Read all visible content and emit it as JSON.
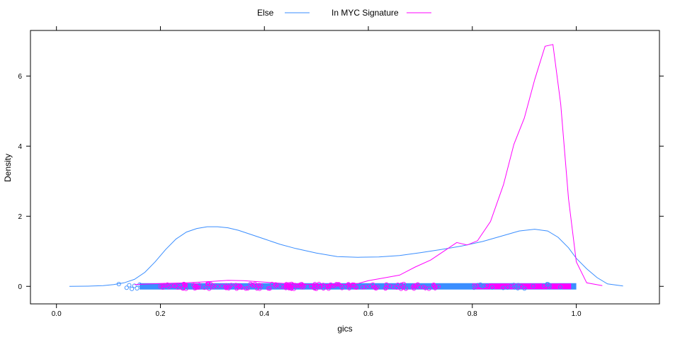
{
  "chart_data": {
    "type": "line",
    "title": "",
    "xlabel": "gics",
    "ylabel": "Density",
    "xlim": [
      -0.05,
      1.16
    ],
    "ylim": [
      -0.5,
      7.3
    ],
    "x_ticks": [
      0.0,
      0.2,
      0.4,
      0.6,
      0.8,
      1.0
    ],
    "x_tick_labels": [
      "0.0",
      "0.2",
      "0.4",
      "0.6",
      "0.8",
      "1.0"
    ],
    "y_ticks": [
      0,
      2,
      4,
      6
    ],
    "y_tick_labels": [
      "0",
      "2",
      "4",
      "6"
    ],
    "grid": false,
    "legend_position": "top",
    "series": [
      {
        "name": "Else",
        "color": "#3A8EFF",
        "x": [
          0.025,
          0.06,
          0.09,
          0.11,
          0.13,
          0.15,
          0.17,
          0.19,
          0.21,
          0.23,
          0.25,
          0.27,
          0.29,
          0.31,
          0.33,
          0.35,
          0.37,
          0.4,
          0.43,
          0.46,
          0.5,
          0.54,
          0.58,
          0.62,
          0.66,
          0.7,
          0.74,
          0.78,
          0.82,
          0.86,
          0.89,
          0.92,
          0.945,
          0.965,
          0.985,
          1.0,
          1.02,
          1.04,
          1.06,
          1.09
        ],
        "y": [
          0.0,
          0.005,
          0.02,
          0.05,
          0.1,
          0.2,
          0.4,
          0.7,
          1.05,
          1.35,
          1.55,
          1.65,
          1.7,
          1.7,
          1.67,
          1.6,
          1.5,
          1.35,
          1.2,
          1.08,
          0.95,
          0.85,
          0.83,
          0.84,
          0.88,
          0.96,
          1.05,
          1.15,
          1.28,
          1.45,
          1.58,
          1.63,
          1.58,
          1.4,
          1.1,
          0.8,
          0.5,
          0.25,
          0.07,
          0.01
        ]
      },
      {
        "name": "In MYC Signature",
        "color": "#FF00FF",
        "x": [
          0.15,
          0.2,
          0.25,
          0.3,
          0.33,
          0.36,
          0.4,
          0.45,
          0.5,
          0.55,
          0.58,
          0.6,
          0.63,
          0.66,
          0.69,
          0.72,
          0.75,
          0.77,
          0.79,
          0.81,
          0.835,
          0.86,
          0.88,
          0.9,
          0.92,
          0.94,
          0.955,
          0.97,
          0.985,
          1.0,
          1.02,
          1.05
        ],
        "y": [
          0.05,
          0.08,
          0.1,
          0.14,
          0.17,
          0.16,
          0.12,
          0.07,
          0.05,
          0.05,
          0.08,
          0.16,
          0.24,
          0.32,
          0.55,
          0.75,
          1.05,
          1.25,
          1.18,
          1.3,
          1.85,
          2.9,
          4.05,
          4.8,
          5.9,
          6.85,
          6.9,
          5.2,
          2.5,
          0.7,
          0.1,
          0.02
        ]
      }
    ],
    "rug": {
      "else_range": [
        0.12,
        1.0
      ],
      "signature_range": [
        0.8,
        0.99
      ]
    }
  },
  "legend": {
    "items": [
      {
        "label": "Else",
        "color": "#3A8EFF"
      },
      {
        "label": "In MYC Signature",
        "color": "#FF00FF"
      }
    ]
  }
}
